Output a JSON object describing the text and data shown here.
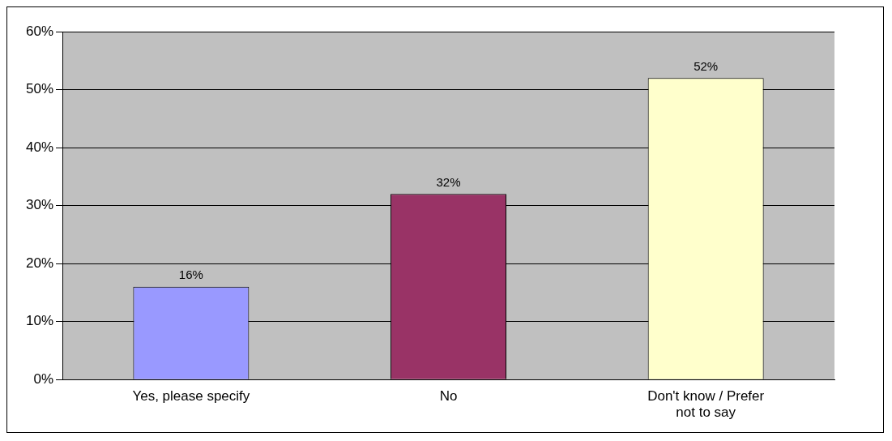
{
  "chart_data": {
    "type": "bar",
    "categories": [
      "Yes, please specify",
      "No",
      "Don't know / Prefer not to say"
    ],
    "values": [
      16,
      32,
      52
    ],
    "colors": [
      "#9999ff",
      "#993366",
      "#ffffcc"
    ],
    "value_labels": [
      "16%",
      "32%",
      "52%"
    ],
    "ylim": [
      0,
      60
    ],
    "yticks": [
      {
        "value": 0,
        "label": "0%"
      },
      {
        "value": 10,
        "label": "10%"
      },
      {
        "value": 20,
        "label": "20%"
      },
      {
        "value": 30,
        "label": "30%"
      },
      {
        "value": 40,
        "label": "40%"
      },
      {
        "value": 50,
        "label": "50%"
      },
      {
        "value": 60,
        "label": "60%"
      }
    ],
    "grid": "y",
    "legend": false
  }
}
